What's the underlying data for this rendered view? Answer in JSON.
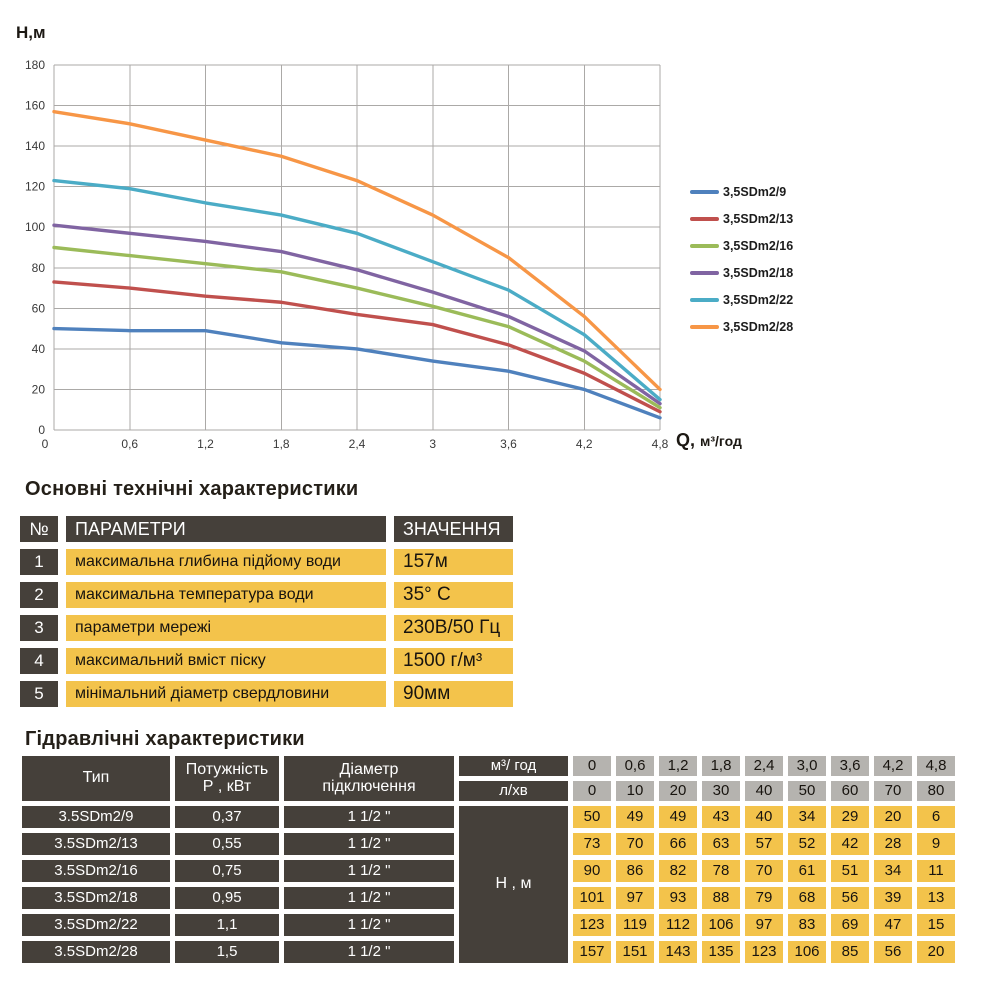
{
  "chart_data": {
    "type": "line",
    "title": "",
    "ylabel": "Н,м",
    "xlabel": "Q, м³/год",
    "x": [
      0,
      0.6,
      1.2,
      1.8,
      2.4,
      3.0,
      3.6,
      4.2,
      4.8
    ],
    "x_tick_labels": [
      "0",
      "0,6",
      "1,2",
      "1,8",
      "2,4",
      "3",
      "3,6",
      "4,2",
      "4,8"
    ],
    "y_ticks": [
      0,
      20,
      40,
      60,
      80,
      100,
      120,
      140,
      160,
      180
    ],
    "xlim": [
      0,
      4.8
    ],
    "ylim": [
      0,
      180
    ],
    "grid": true,
    "legend_position": "right",
    "series": [
      {
        "name": "3,5SDm2/9",
        "color": "#4F81BD",
        "values": [
          50,
          49,
          49,
          43,
          40,
          34,
          29,
          20,
          6
        ]
      },
      {
        "name": "3,5SDm2/13",
        "color": "#C0504D",
        "values": [
          73,
          70,
          66,
          63,
          57,
          52,
          42,
          28,
          9
        ]
      },
      {
        "name": "3,5SDm2/16",
        "color": "#9BBB59",
        "values": [
          90,
          86,
          82,
          78,
          70,
          61,
          51,
          34,
          11
        ]
      },
      {
        "name": "3,5SDm2/18",
        "color": "#8064A2",
        "values": [
          101,
          97,
          93,
          88,
          79,
          68,
          56,
          39,
          13
        ]
      },
      {
        "name": "3,5SDm2/22",
        "color": "#4BACC6",
        "values": [
          123,
          119,
          112,
          106,
          97,
          83,
          69,
          47,
          15
        ]
      },
      {
        "name": "3,5SDm2/28",
        "color": "#F79646",
        "values": [
          157,
          151,
          143,
          135,
          123,
          106,
          85,
          56,
          20
        ]
      }
    ]
  },
  "tech_section": {
    "title": "Основні технічні характеристики",
    "headers": {
      "num": "№",
      "param": "ПАРАМЕТРИ",
      "value": "ЗНАЧЕННЯ"
    },
    "rows": [
      {
        "num": "1",
        "param": "максимальна глибина підйому води",
        "value": "157м"
      },
      {
        "num": "2",
        "param": "максимальна температура води",
        "value": "35° С"
      },
      {
        "num": "3",
        "param": "параметри мережі",
        "value": "230В/50 Гц"
      },
      {
        "num": "4",
        "param": "максимальний вміст піску",
        "value": "1500 г/м³"
      },
      {
        "num": "5",
        "param": "мінімальний діаметр свердловини",
        "value": "90мм"
      }
    ]
  },
  "hydraulic_section": {
    "title": "Гідравлічні характеристики",
    "col_headers": {
      "type": "Тип",
      "power_line1": "Потужність",
      "power_line2": "Р , кВт",
      "diameter_line1": "Діаметр",
      "diameter_line2": "підключення"
    },
    "flow_rows": [
      {
        "label": "м³/ год",
        "values": [
          "0",
          "0,6",
          "1,2",
          "1,8",
          "2,4",
          "3,0",
          "3,6",
          "4,2",
          "4,8"
        ]
      },
      {
        "label": "л/хв",
        "values": [
          "0",
          "10",
          "20",
          "30",
          "40",
          "50",
          "60",
          "70",
          "80"
        ]
      }
    ],
    "head_label": "Н , м",
    "rows": [
      {
        "type": "3.5SDm2/9",
        "power": "0,37",
        "diameter": "1 1/2 \"",
        "heads": [
          "50",
          "49",
          "49",
          "43",
          "40",
          "34",
          "29",
          "20",
          "6"
        ]
      },
      {
        "type": "3.5SDm2/13",
        "power": "0,55",
        "diameter": "1 1/2 \"",
        "heads": [
          "73",
          "70",
          "66",
          "63",
          "57",
          "52",
          "42",
          "28",
          "9"
        ]
      },
      {
        "type": "3.5SDm2/16",
        "power": "0,75",
        "diameter": "1 1/2 \"",
        "heads": [
          "90",
          "86",
          "82",
          "78",
          "70",
          "61",
          "51",
          "34",
          "11"
        ]
      },
      {
        "type": "3.5SDm2/18",
        "power": "0,95",
        "diameter": "1 1/2 \"",
        "heads": [
          "101",
          "97",
          "93",
          "88",
          "79",
          "68",
          "56",
          "39",
          "13"
        ]
      },
      {
        "type": "3.5SDm2/22",
        "power": "1,1",
        "diameter": "1 1/2 \"",
        "heads": [
          "123",
          "119",
          "112",
          "106",
          "97",
          "83",
          "69",
          "47",
          "15"
        ]
      },
      {
        "type": "3.5SDm2/28",
        "power": "1,5",
        "diameter": "1 1/2 \"",
        "heads": [
          "157",
          "151",
          "143",
          "135",
          "123",
          "106",
          "85",
          "56",
          "20"
        ]
      }
    ]
  },
  "colors": {
    "dark_cell": "#45403A",
    "yellow_cell": "#F3C34B",
    "gray_cell": "#B5B3AF",
    "grid_line": "#ABA9A7",
    "axis_text": "#3A3A3A",
    "title_text": "#241F18"
  }
}
